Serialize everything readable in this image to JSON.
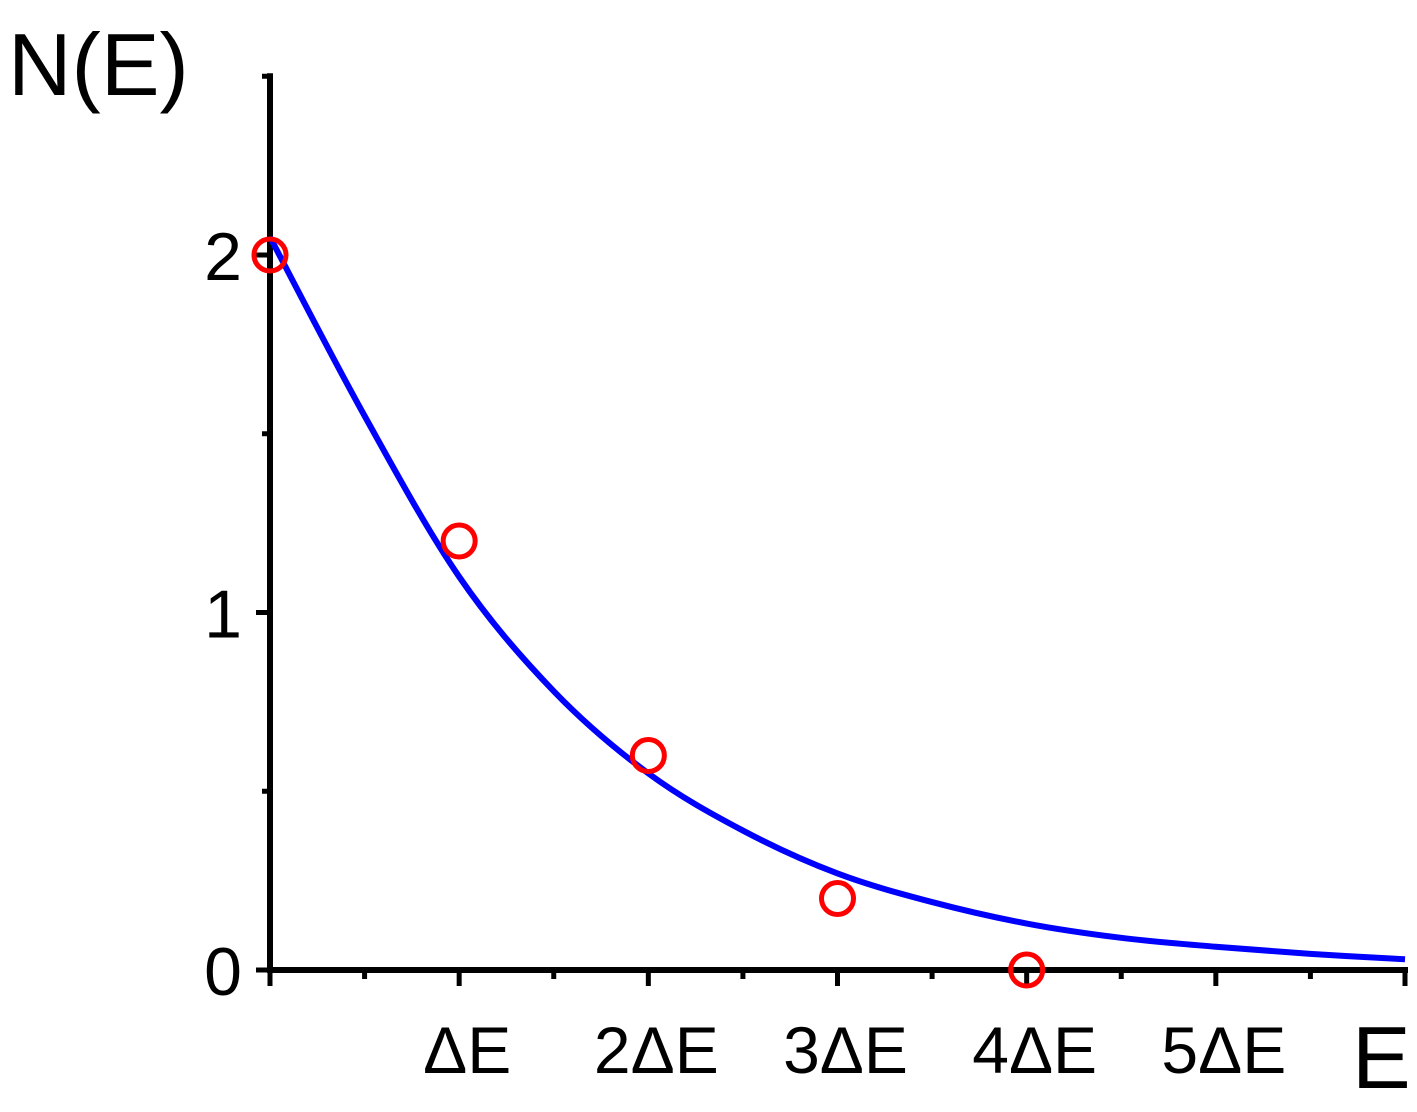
{
  "chart_data": {
    "type": "scatter",
    "xlabel": "E",
    "ylabel": "N(E)",
    "xlim": [
      0,
      6
    ],
    "ylim": [
      0,
      2.5
    ],
    "x_ticks": [
      {
        "value": 1,
        "label": "ΔE"
      },
      {
        "value": 2,
        "label": "2ΔE"
      },
      {
        "value": 3,
        "label": "3ΔE"
      },
      {
        "value": 4,
        "label": "4ΔE"
      },
      {
        "value": 5,
        "label": "5ΔE"
      }
    ],
    "y_ticks": [
      {
        "value": 0,
        "label": "0"
      },
      {
        "value": 1,
        "label": "1"
      },
      {
        "value": 2,
        "label": "2"
      }
    ],
    "series": [
      {
        "kind": "points",
        "marker": "open-circle",
        "color": "#ff0000",
        "x": [
          0,
          1,
          2,
          3,
          4
        ],
        "y": [
          2.0,
          1.2,
          0.6,
          0.2,
          0.0
        ]
      },
      {
        "kind": "fit-curve",
        "color": "#0000ff",
        "x": [
          0,
          0.5,
          1,
          1.5,
          2,
          2.5,
          3,
          3.5,
          4,
          4.5,
          5,
          5.5,
          6
        ],
        "y": [
          2.05,
          1.55,
          1.1,
          0.78,
          0.55,
          0.39,
          0.27,
          0.19,
          0.13,
          0.09,
          0.065,
          0.045,
          0.03
        ]
      }
    ],
    "grid": false,
    "legend": "none"
  }
}
